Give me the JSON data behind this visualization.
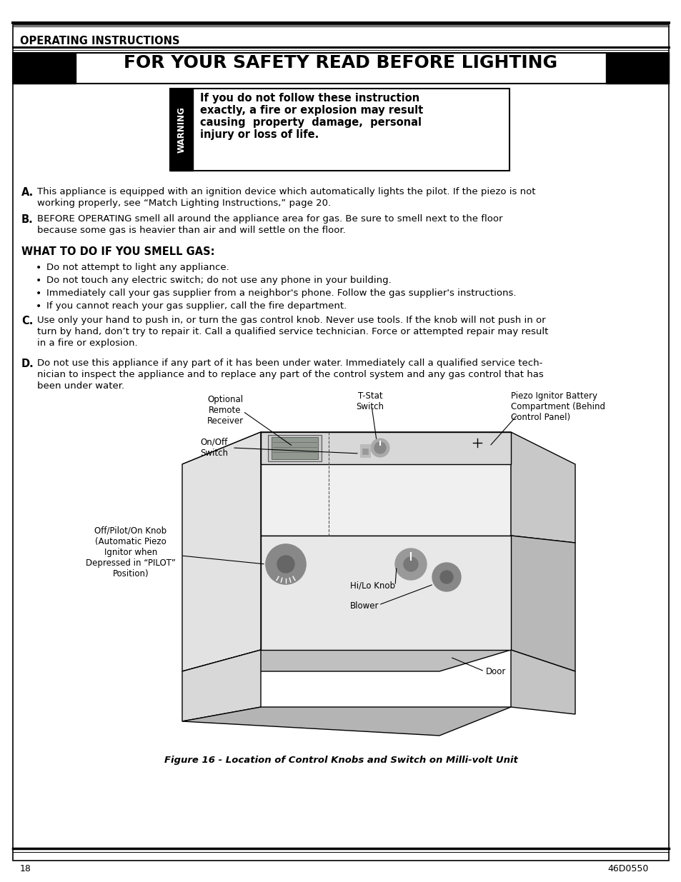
{
  "bg_color": "#ffffff",
  "title_section": "OPERATING INSTRUCTIONS",
  "safety_title": "FOR YOUR SAFETY READ BEFORE LIGHTING",
  "warning_line1": "If you do not follow these instruction",
  "warning_line2": "exactly, a fire or explosion may result",
  "warning_line3": "causing  property  damage,  personal",
  "warning_line4": "injury or loss of life.",
  "label_A": "A.",
  "text_A1": "This appliance is equipped with an ignition device which automatically lights the pilot. If the piezo is not",
  "text_A2": "working properly, see “Match Lighting Instructions,” page 20.",
  "label_B": "B.",
  "text_B1": "BEFORE OPERATING smell all around the appliance area for gas. Be sure to smell next to the floor",
  "text_B2": "because some gas is heavier than air and will settle on the floor.",
  "smell_gas_title": "WHAT TO DO IF YOU SMELL GAS:",
  "bullet1": "Do not attempt to light any appliance.",
  "bullet2": "Do not touch any electric switch; do not use any phone in your building.",
  "bullet3": "Immediately call your gas supplier from a neighbor's phone. Follow the gas supplier's instructions.",
  "bullet4": "If you cannot reach your gas supplier, call the fire department.",
  "label_C": "C.",
  "text_C1": "Use only your hand to push in, or turn the gas control knob. Never use tools. If the knob will not push in or",
  "text_C2": "turn by hand, don’t try to repair it. Call a qualified service technician. Force or attempted repair may result",
  "text_C3": "in a fire or explosion.",
  "label_D": "D.",
  "text_D1": "Do not use this appliance if any part of it has been under water. Immediately call a qualified service tech-",
  "text_D2": "nician to inspect the appliance and to replace any part of the control system and any gas control that has",
  "text_D3": "been under water.",
  "lbl_optional": "Optional\nRemote\nReceiver",
  "lbl_onoff": "On/Off\nSwitch",
  "lbl_pilot": "Off/Pilot/On Knob\n(Automatic Piezo\nIgnitor when\nDepressed in “PILOT”\nPosition)",
  "lbl_tstat": "T-Stat\nSwitch",
  "lbl_piezo": "Piezo Ignitor Battery\nCompartment (Behind\nControl Panel)",
  "lbl_hilo": "Hi/Lo Knob",
  "lbl_blower": "Blower",
  "lbl_door": "Door",
  "figure_caption": "Figure 16 - Location of Control Knobs and Switch on Milli-volt Unit",
  "page_number": "18",
  "doc_number": "46D0550"
}
